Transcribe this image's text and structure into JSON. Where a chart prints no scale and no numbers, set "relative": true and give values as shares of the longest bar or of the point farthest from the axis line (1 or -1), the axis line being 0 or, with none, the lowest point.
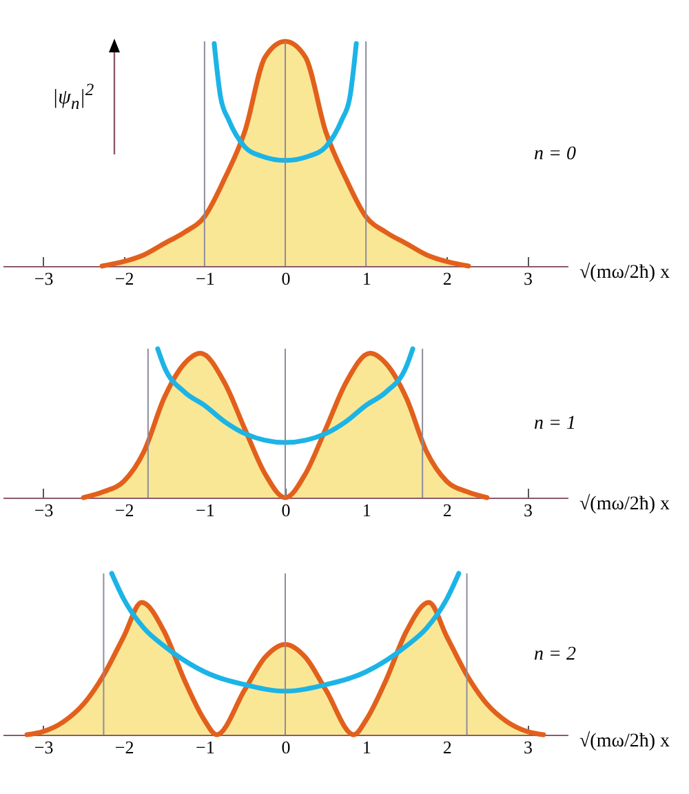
{
  "chart_data": [
    {
      "type": "area",
      "relative": true,
      "ylabel": "|ψ$_{n}$|$^{2}$",
      "xlabel": "√(mω/2ħ) x",
      "xlim": [
        -3.5,
        3.5
      ],
      "xticks": [
        -3,
        -2,
        -1,
        0,
        1,
        2,
        3
      ],
      "annotations": [
        "n = 0"
      ],
      "ref_lines": [
        {
          "axis": "x",
          "value": -1,
          "color": "#8c8c9c"
        },
        {
          "axis": "x",
          "value": 0,
          "color": "#8c8c9c"
        },
        {
          "axis": "x",
          "value": 1,
          "color": "#8c8c9c"
        }
      ],
      "series": [
        {
          "type": "area",
          "color": "#f9e796",
          "x": [
            -2.27,
            -2,
            -1.75,
            -1.5,
            -1.25,
            -1,
            -0.75,
            -0.5,
            -0.25,
            0,
            0.25,
            0.5,
            0.75,
            1,
            1.25,
            1.5,
            1.75,
            2,
            2.27
          ],
          "values": [
            0,
            0.02,
            0.05,
            0.1,
            0.15,
            0.22,
            0.39,
            0.6,
            0.93,
            1,
            0.93,
            0.6,
            0.39,
            0.22,
            0.15,
            0.1,
            0.05,
            0.02,
            0
          ]
        },
        {
          "type": "line",
          "color": "#1cb4e6",
          "x": [
            -0.88,
            -0.8,
            -0.7,
            -0.5,
            -0.3,
            0,
            0.3,
            0.5,
            0.7,
            0.8,
            0.88
          ],
          "values": [
            0.99,
            0.75,
            0.65,
            0.53,
            0.49,
            0.47,
            0.49,
            0.53,
            0.65,
            0.75,
            0.99
          ]
        }
      ]
    },
    {
      "type": "area",
      "relative": true,
      "xlabel": "√(mω/2ħ) x",
      "xlim": [
        -3.5,
        3.5
      ],
      "xticks": [
        -3,
        -2,
        -1,
        0,
        1,
        2,
        3
      ],
      "annotations": [
        "n = 1"
      ],
      "ref_lines": [
        {
          "axis": "x",
          "value": -1.7,
          "color": "#8c8c9c"
        },
        {
          "axis": "x",
          "value": 0,
          "color": "#8c8c9c"
        },
        {
          "axis": "x",
          "value": 1.7,
          "color": "#8c8c9c"
        }
      ],
      "series": [
        {
          "type": "area",
          "color": "#f9e796",
          "x": [
            -2.5,
            -2.25,
            -2,
            -1.75,
            -1.5,
            -1.25,
            -1.05,
            -0.75,
            -0.5,
            -0.25,
            0,
            0.25,
            0.5,
            0.75,
            1.05,
            1.25,
            1.5,
            1.75,
            2,
            2.25,
            2.5
          ],
          "values": [
            0,
            0.04,
            0.11,
            0.31,
            0.67,
            0.9,
            0.97,
            0.77,
            0.46,
            0.16,
            0,
            0.16,
            0.46,
            0.77,
            0.97,
            0.9,
            0.67,
            0.31,
            0.11,
            0.04,
            0
          ]
        },
        {
          "type": "line",
          "color": "#1cb4e6",
          "x": [
            -1.58,
            -1.5,
            -1.25,
            -1,
            -0.75,
            -0.5,
            0,
            0.5,
            0.75,
            1,
            1.25,
            1.5,
            1.58
          ],
          "values": [
            1,
            0.88,
            0.71,
            0.62,
            0.51,
            0.43,
            0.37,
            0.43,
            0.51,
            0.62,
            0.71,
            0.88,
            1
          ]
        }
      ]
    },
    {
      "type": "area",
      "relative": true,
      "xlabel": "√(mω/2ħ) x",
      "xlim": [
        -3.5,
        3.5
      ],
      "xticks": [
        -3,
        -2,
        -1,
        0,
        1,
        2,
        3
      ],
      "annotations": [
        "n = 2"
      ],
      "ref_lines": [
        {
          "axis": "x",
          "value": -2.25,
          "color": "#8c8c9c"
        },
        {
          "axis": "x",
          "value": 0,
          "color": "#8c8c9c"
        },
        {
          "axis": "x",
          "value": 2.25,
          "color": "#8c8c9c"
        }
      ],
      "series": [
        {
          "type": "area",
          "color": "#f9e796",
          "x": [
            -3.2,
            -3,
            -2.75,
            -2.5,
            -2.25,
            -2,
            -1.78,
            -1.5,
            -1.25,
            -1,
            -0.85,
            -0.5,
            -0.25,
            0,
            0.25,
            0.5,
            0.85,
            1,
            1.25,
            1.5,
            1.78,
            2,
            2.25,
            2.5,
            2.75,
            3,
            3.2
          ],
          "values": [
            0,
            0.02,
            0.08,
            0.19,
            0.37,
            0.61,
            0.82,
            0.64,
            0.34,
            0.09,
            0,
            0.28,
            0.48,
            0.56,
            0.48,
            0.28,
            0,
            0.09,
            0.34,
            0.64,
            0.82,
            0.61,
            0.37,
            0.19,
            0.08,
            0.02,
            0
          ]
        },
        {
          "type": "line",
          "color": "#1cb4e6",
          "x": [
            -2.15,
            -2,
            -1.75,
            -1.5,
            -1,
            -0.5,
            0,
            0.5,
            1,
            1.5,
            1.75,
            2,
            2.15
          ],
          "values": [
            1,
            0.84,
            0.66,
            0.55,
            0.39,
            0.31,
            0.27,
            0.31,
            0.39,
            0.55,
            0.66,
            0.84,
            1
          ]
        }
      ]
    }
  ]
}
